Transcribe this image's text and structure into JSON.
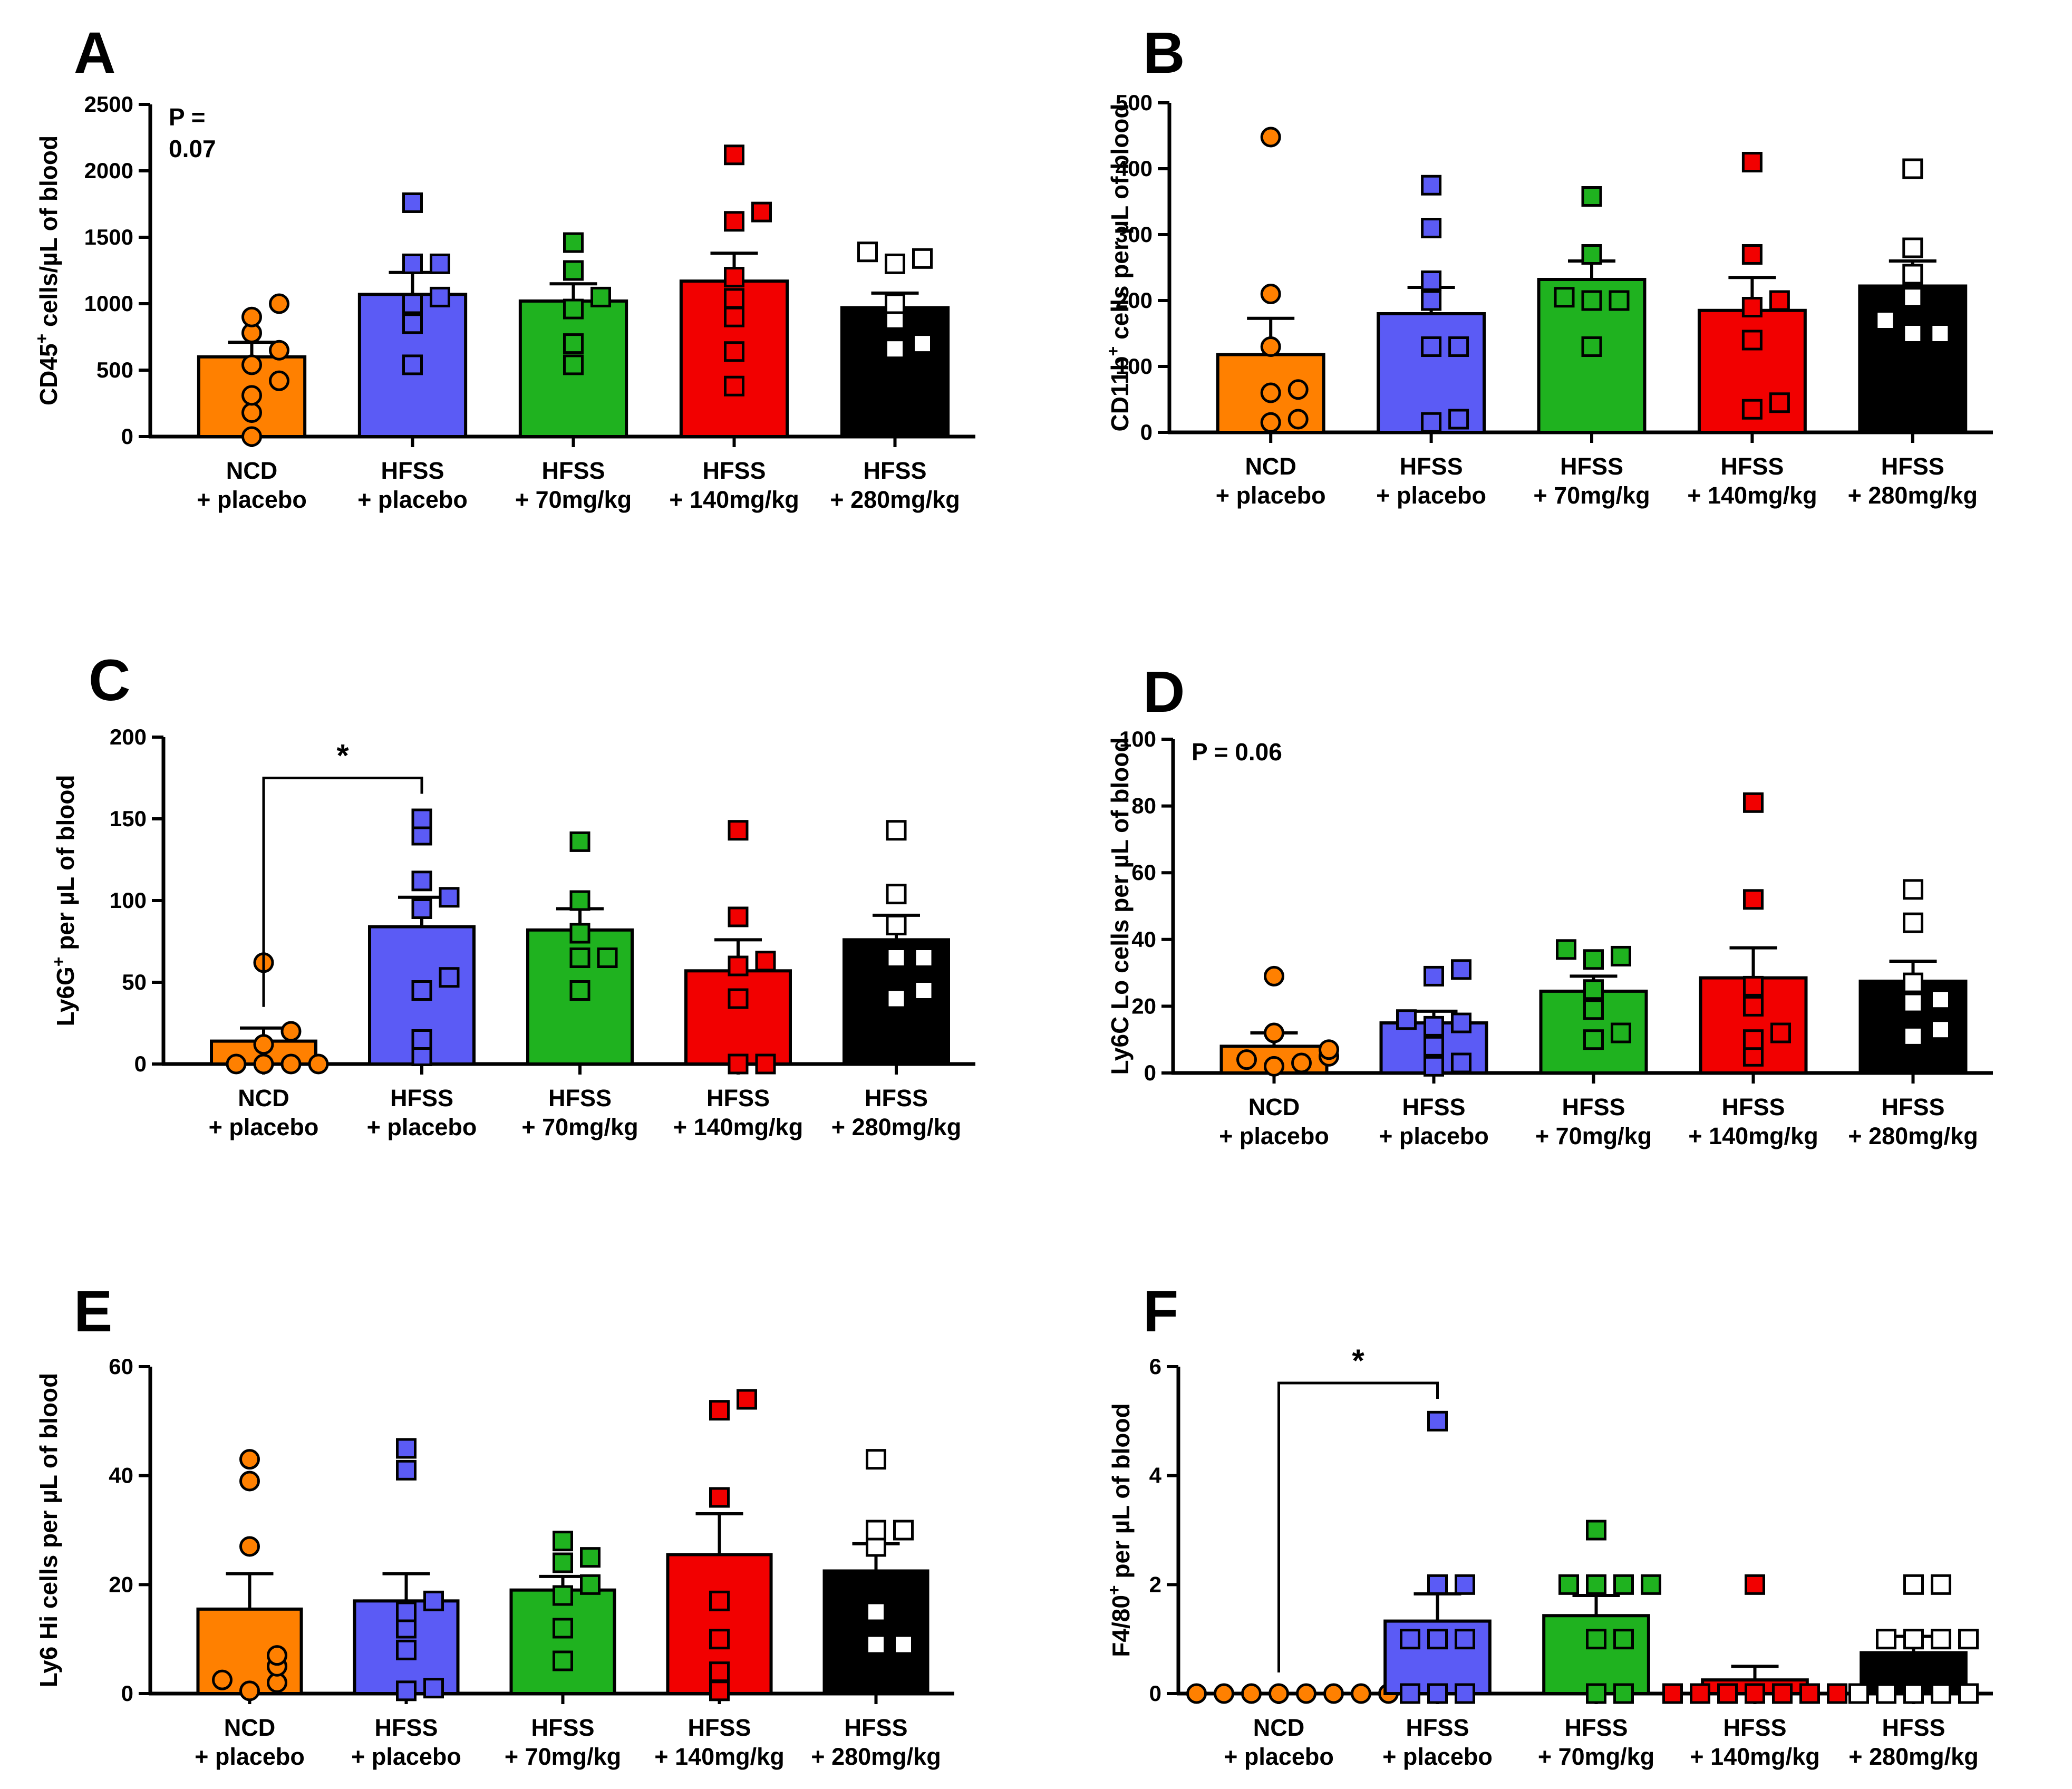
{
  "figure": {
    "group_colors": [
      "#ff8000",
      "#5b5bf5",
      "#1fb21f",
      "#f20000",
      "#000000"
    ],
    "point_colors": [
      "#ff8000",
      "#5b5bf5",
      "#1fb21f",
      "#f20000",
      "#ffffff"
    ],
    "point_shapes": [
      "circle",
      "square",
      "square",
      "square",
      "square"
    ]
  },
  "chart_data": [
    {
      "panel_label": "A",
      "type": "bar",
      "categories": [
        [
          "NCD",
          "+ placebo"
        ],
        [
          "HFSS",
          "+ placebo"
        ],
        [
          "HFSS",
          "+ 70mg/kg"
        ],
        [
          "HFSS",
          "+ 140mg/kg"
        ],
        [
          "HFSS",
          "+ 280mg/kg"
        ]
      ],
      "ylabel_main": "CD45",
      "ylabel_sup": "+",
      "ylabel_rest": " cells/µL of blood",
      "ylim": [
        0,
        2500
      ],
      "yticks": [
        0,
        500,
        1000,
        1500,
        2000,
        2500
      ],
      "means": [
        600,
        1070,
        1020,
        1170,
        970
      ],
      "sem": [
        110,
        165,
        130,
        210,
        110
      ],
      "points": [
        [
          0,
          180,
          310,
          420,
          540,
          650,
          780,
          900,
          1000
        ],
        [
          540,
          850,
          1000,
          1050,
          1300,
          1300,
          1760
        ],
        [
          540,
          700,
          960,
          1050,
          1250,
          1460
        ],
        [
          380,
          640,
          900,
          1040,
          1200,
          1620,
          1690,
          2120
        ],
        [
          660,
          700,
          880,
          1000,
          1300,
          1340,
          1390
        ]
      ],
      "pvalue_lines": [
        "P =",
        "0.07"
      ],
      "significance": null
    },
    {
      "panel_label": "B",
      "type": "bar",
      "categories": [
        [
          "NCD",
          "+ placebo"
        ],
        [
          "HFSS",
          "+ placebo"
        ],
        [
          "HFSS",
          "+ 70mg/kg"
        ],
        [
          "HFSS",
          "+ 140mg/kg"
        ],
        [
          "HFSS",
          "+ 280mg/kg"
        ]
      ],
      "ylabel_main": "CD11b",
      "ylabel_sup": "+",
      "ylabel_rest": " cells per µL of blood",
      "ylim": [
        0,
        500
      ],
      "yticks": [
        0,
        100,
        200,
        300,
        400,
        500
      ],
      "means": [
        118,
        180,
        232,
        185,
        222
      ],
      "sem": [
        55,
        40,
        28,
        50,
        38
      ],
      "points": [
        [
          15,
          20,
          60,
          65,
          130,
          210,
          448
        ],
        [
          15,
          20,
          130,
          130,
          200,
          230,
          310,
          375
        ],
        [
          130,
          200,
          200,
          205,
          270,
          358
        ],
        [
          35,
          45,
          140,
          190,
          200,
          270,
          410
        ],
        [
          150,
          150,
          170,
          205,
          240,
          280,
          400
        ]
      ],
      "pvalue_lines": [],
      "significance": null
    },
    {
      "panel_label": "C",
      "type": "bar",
      "categories": [
        [
          "NCD",
          "+ placebo"
        ],
        [
          "HFSS",
          "+ placebo"
        ],
        [
          "HFSS",
          "+ 70mg/kg"
        ],
        [
          "HFSS",
          "+ 140mg/kg"
        ],
        [
          "HFSS",
          "+ 280mg/kg"
        ]
      ],
      "ylabel_main": "Ly6G",
      "ylabel_sup": "+",
      "ylabel_rest": " per µL of blood",
      "ylim": [
        0,
        200
      ],
      "yticks": [
        0,
        50,
        100,
        150,
        200
      ],
      "means": [
        14,
        84,
        82,
        57,
        76
      ],
      "sem": [
        8,
        18,
        13,
        19,
        15
      ],
      "points": [
        [
          0,
          0,
          0,
          0,
          12,
          20,
          62
        ],
        [
          5,
          15,
          45,
          53,
          95,
          102,
          112,
          140,
          150
        ],
        [
          45,
          65,
          65,
          80,
          100,
          136
        ],
        [
          0,
          0,
          40,
          60,
          63,
          90,
          143
        ],
        [
          40,
          45,
          65,
          65,
          85,
          104,
          143
        ]
      ],
      "pvalue_lines": [],
      "significance": {
        "from": 0,
        "to": 1,
        "label": "*",
        "y": 175
      }
    },
    {
      "panel_label": "D",
      "type": "bar",
      "categories": [
        [
          "NCD",
          "+ placebo"
        ],
        [
          "HFSS",
          "+ placebo"
        ],
        [
          "HFSS",
          "+ 70mg/kg"
        ],
        [
          "HFSS",
          "+ 140mg/kg"
        ],
        [
          "HFSS",
          "+ 280mg/kg"
        ]
      ],
      "ylabel_main": "Ly6C Lo cells per µL of blood",
      "ylabel_sup": "",
      "ylabel_rest": "",
      "ylim": [
        0,
        100
      ],
      "yticks": [
        0,
        20,
        40,
        60,
        80,
        100
      ],
      "means": [
        8,
        15,
        24.5,
        28.5,
        27.5
      ],
      "sem": [
        4,
        3.5,
        4.5,
        9,
        6
      ],
      "points": [
        [
          2,
          3,
          4,
          5,
          7,
          12,
          29
        ],
        [
          2,
          3,
          8,
          14,
          15,
          16,
          29,
          31
        ],
        [
          10,
          12,
          19,
          25,
          34,
          35,
          37
        ],
        [
          5,
          10,
          12,
          20,
          26,
          52,
          81
        ],
        [
          11,
          13,
          21,
          22,
          27,
          45,
          55
        ]
      ],
      "pvalue_lines": [
        "P = 0.06"
      ],
      "significance": null
    },
    {
      "panel_label": "E",
      "type": "bar",
      "categories": [
        [
          "NCD",
          "+ placebo"
        ],
        [
          "HFSS",
          "+ placebo"
        ],
        [
          "HFSS",
          "+ 70mg/kg"
        ],
        [
          "HFSS",
          "+ 140mg/kg"
        ],
        [
          "HFSS",
          "+ 280mg/kg"
        ]
      ],
      "ylabel_main": "Ly6 Hi cells per µL of blood",
      "ylabel_sup": "",
      "ylabel_rest": "",
      "ylim": [
        0,
        60
      ],
      "yticks": [
        0,
        20,
        40,
        60
      ],
      "means": [
        15.5,
        17,
        19,
        25.5,
        22.5
      ],
      "sem": [
        6.5,
        5,
        2.5,
        7.5,
        5
      ],
      "points": [
        [
          0.5,
          2,
          2.5,
          5,
          7,
          27,
          39,
          43
        ],
        [
          0.5,
          1,
          8,
          12,
          15,
          17,
          41,
          45
        ],
        [
          6,
          12,
          18,
          20,
          24,
          25,
          28
        ],
        [
          0.5,
          4,
          10,
          17,
          36,
          52,
          54
        ],
        [
          9,
          9,
          15,
          27,
          30,
          30,
          43
        ]
      ],
      "pvalue_lines": [],
      "significance": null
    },
    {
      "panel_label": "F",
      "type": "bar",
      "categories": [
        [
          "NCD",
          "+ placebo"
        ],
        [
          "HFSS",
          "+ placebo"
        ],
        [
          "HFSS",
          "+ 70mg/kg"
        ],
        [
          "HFSS",
          "+ 140mg/kg"
        ],
        [
          "HFSS",
          "+ 280mg/kg"
        ]
      ],
      "ylabel_main": "F4/80",
      "ylabel_sup": "+",
      "ylabel_rest": " per µL of blood",
      "ylim": [
        0,
        6
      ],
      "yticks": [
        0,
        2,
        4,
        6
      ],
      "means": [
        0,
        1.33,
        1.43,
        0.25,
        0.75
      ],
      "sem": [
        0,
        0.5,
        0.37,
        0.25,
        0.3
      ],
      "points": [
        [
          0,
          0,
          0,
          0,
          0,
          0,
          0,
          0
        ],
        [
          0,
          0,
          0,
          1,
          1,
          1,
          2,
          2,
          5
        ],
        [
          0,
          0,
          1,
          1,
          2,
          2,
          2,
          2,
          3
        ],
        [
          0,
          0,
          0,
          0,
          0,
          0,
          0,
          2
        ],
        [
          0,
          0,
          0,
          0,
          0,
          1,
          1,
          1,
          1,
          2,
          2
        ]
      ],
      "pvalue_lines": [],
      "significance": {
        "from": 0,
        "to": 1,
        "label": "*",
        "y": 5.7
      }
    }
  ]
}
